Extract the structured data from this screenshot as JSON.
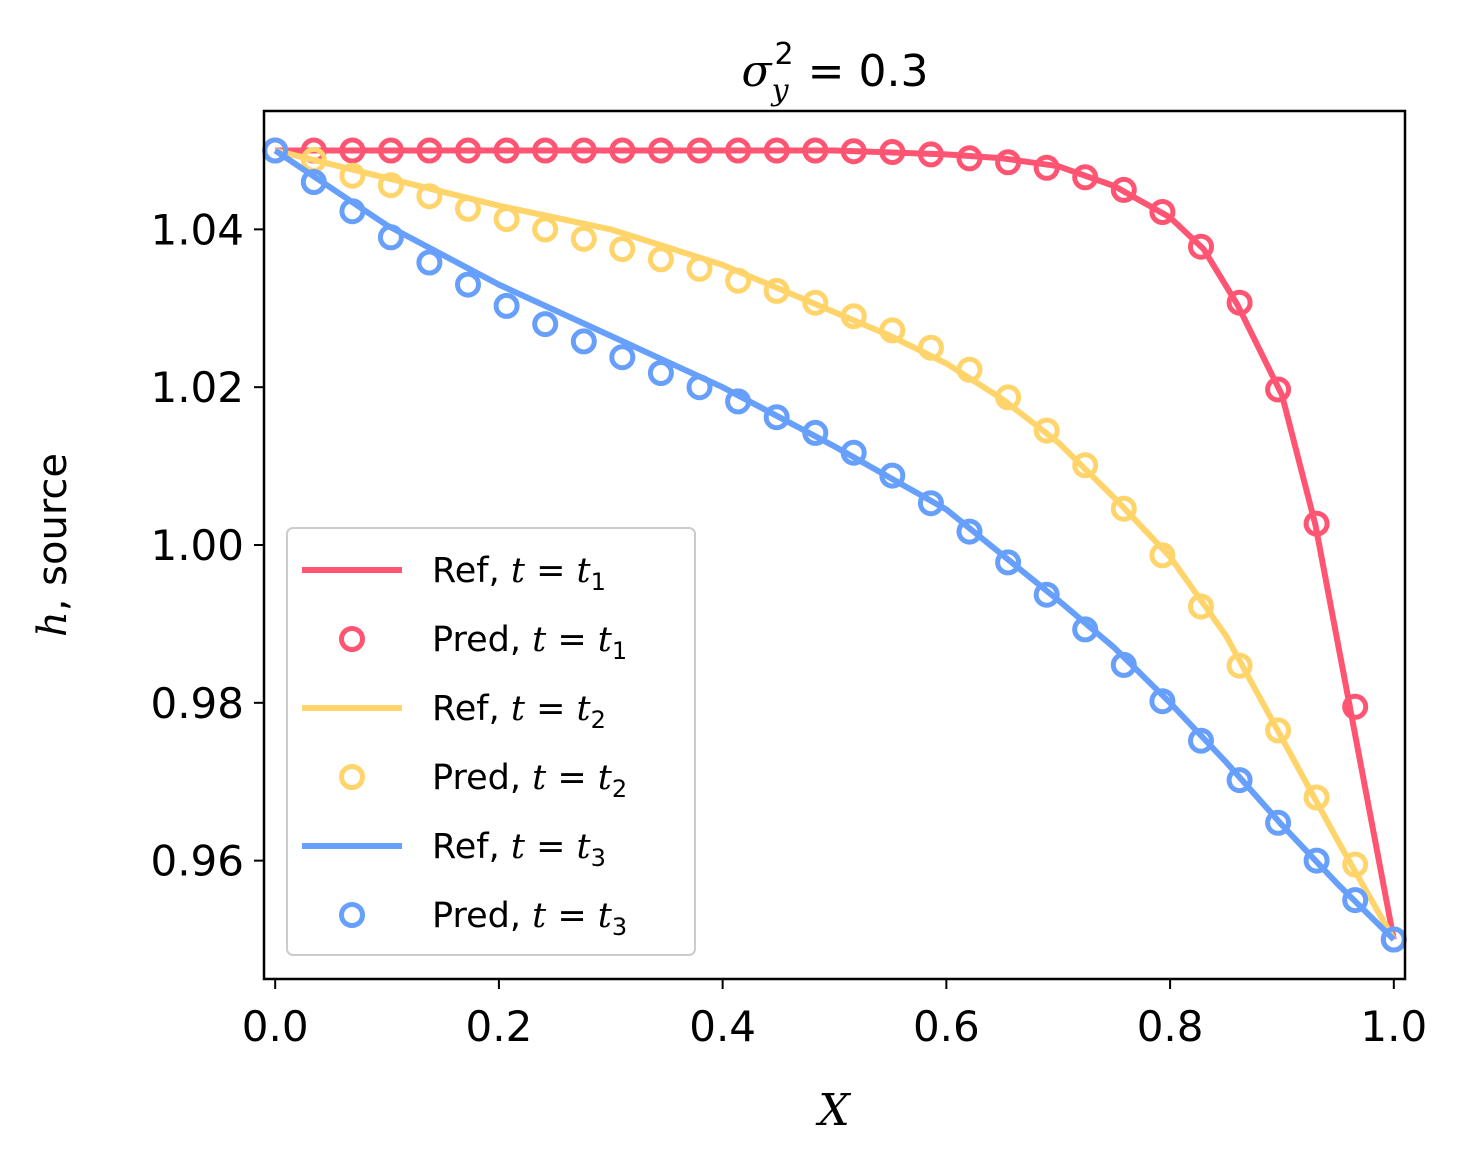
{
  "chart_data": {
    "type": "line",
    "title": "σ_y^2 = 0.3",
    "title_parts": {
      "symbol": "σ",
      "sup": "2",
      "sub": "y",
      "rest": " = 0.3"
    },
    "xlabel": "X",
    "ylabel": ", source",
    "ylabel_italic": "h",
    "xlim": [
      -0.01,
      1.01
    ],
    "ylim": [
      0.945,
      1.055
    ],
    "xticks": [
      0.0,
      0.2,
      0.4,
      0.6,
      0.8,
      1.0
    ],
    "xtick_labels": [
      "0.0",
      "0.2",
      "0.4",
      "0.6",
      "0.8",
      "1.0"
    ],
    "yticks": [
      0.96,
      0.98,
      1.0,
      1.02,
      1.04
    ],
    "ytick_labels": [
      "0.96",
      "0.98",
      "1.00",
      "1.02",
      "1.04"
    ],
    "grid": false,
    "legend_position": "lower-left",
    "colors": {
      "t1": "#ff5573",
      "t2": "#ffd46b",
      "t3": "#679ffc"
    },
    "series": [
      {
        "name": "Ref, t = t1",
        "label_prefix": "Ref, ",
        "t_sub": "1",
        "kind": "line",
        "color_key": "t1",
        "x": [
          0.0,
          0.1,
          0.2,
          0.3,
          0.4,
          0.5,
          0.6,
          0.65,
          0.7,
          0.75,
          0.8,
          0.83,
          0.86,
          0.9,
          0.93,
          0.96,
          1.0
        ],
        "y": [
          1.05,
          1.05,
          1.05,
          1.05,
          1.05,
          1.05,
          1.0495,
          1.049,
          1.048,
          1.0455,
          1.0415,
          1.0375,
          1.0305,
          1.019,
          1.0025,
          0.98,
          0.95
        ]
      },
      {
        "name": "Pred, t = t1",
        "label_prefix": "Pred, ",
        "t_sub": "1",
        "kind": "marker",
        "color_key": "t1",
        "x": [
          0.0,
          0.0345,
          0.069,
          0.1034,
          0.1379,
          0.1724,
          0.2069,
          0.2414,
          0.2759,
          0.3103,
          0.3448,
          0.3793,
          0.4138,
          0.4483,
          0.4828,
          0.5172,
          0.5517,
          0.5862,
          0.6207,
          0.6552,
          0.6897,
          0.7241,
          0.7586,
          0.7931,
          0.8276,
          0.8621,
          0.8966,
          0.931,
          0.9655,
          1.0
        ],
        "y": [
          1.05,
          1.05,
          1.05,
          1.05,
          1.05,
          1.05,
          1.05,
          1.05,
          1.05,
          1.05,
          1.05,
          1.05,
          1.05,
          1.05,
          1.05,
          1.0499,
          1.0498,
          1.0495,
          1.049,
          1.0485,
          1.0478,
          1.0466,
          1.045,
          1.0422,
          1.0378,
          1.0307,
          1.0197,
          1.0027,
          0.9795,
          0.95
        ]
      },
      {
        "name": "Ref, t = t2",
        "label_prefix": "Ref, ",
        "t_sub": "2",
        "kind": "line",
        "color_key": "t2",
        "x": [
          0.0,
          0.1,
          0.2,
          0.3,
          0.4,
          0.5,
          0.55,
          0.6,
          0.65,
          0.7,
          0.75,
          0.8,
          0.85,
          0.9,
          0.95,
          1.0
        ],
        "y": [
          1.05,
          1.0465,
          1.043,
          1.04,
          1.0355,
          1.0295,
          1.0265,
          1.023,
          1.0185,
          1.013,
          1.006,
          0.9985,
          0.9885,
          0.9755,
          0.9625,
          0.95
        ]
      },
      {
        "name": "Pred, t = t2",
        "label_prefix": "Pred, ",
        "t_sub": "2",
        "kind": "marker",
        "color_key": "t2",
        "x": [
          0.0,
          0.0345,
          0.069,
          0.1034,
          0.1379,
          0.1724,
          0.2069,
          0.2414,
          0.2759,
          0.3103,
          0.3448,
          0.3793,
          0.4138,
          0.4483,
          0.4828,
          0.5172,
          0.5517,
          0.5862,
          0.6207,
          0.6552,
          0.6897,
          0.7241,
          0.7586,
          0.7931,
          0.8276,
          0.8621,
          0.8966,
          0.931,
          0.9655,
          1.0
        ],
        "y": [
          1.05,
          1.0488,
          1.0468,
          1.0456,
          1.0442,
          1.0426,
          1.0413,
          1.04,
          1.0388,
          1.0375,
          1.0362,
          1.035,
          1.0335,
          1.0322,
          1.0307,
          1.029,
          1.0272,
          1.025,
          1.0222,
          1.0187,
          1.0145,
          1.0101,
          1.0046,
          0.9987,
          0.9922,
          0.9847,
          0.9765,
          0.968,
          0.9595,
          0.95
        ]
      },
      {
        "name": "Ref, t = t3",
        "label_prefix": "Ref, ",
        "t_sub": "3",
        "kind": "line",
        "color_key": "t3",
        "x": [
          0.0,
          0.1,
          0.2,
          0.3,
          0.4,
          0.5,
          0.6,
          0.7,
          0.75,
          0.8,
          0.85,
          0.9,
          0.95,
          1.0
        ],
        "y": [
          1.05,
          1.0405,
          1.033,
          1.0265,
          1.02,
          1.0125,
          1.0045,
          0.993,
          0.987,
          0.98,
          0.9725,
          0.9645,
          0.957,
          0.95
        ]
      },
      {
        "name": "Pred, t = t3",
        "label_prefix": "Pred, ",
        "t_sub": "3",
        "kind": "marker",
        "color_key": "t3",
        "x": [
          0.0,
          0.0345,
          0.069,
          0.1034,
          0.1379,
          0.1724,
          0.2069,
          0.2414,
          0.2759,
          0.3103,
          0.3448,
          0.3793,
          0.4138,
          0.4483,
          0.4828,
          0.5172,
          0.5517,
          0.5862,
          0.6207,
          0.6552,
          0.6897,
          0.7241,
          0.7586,
          0.7931,
          0.8276,
          0.8621,
          0.8966,
          0.931,
          0.9655,
          1.0
        ],
        "y": [
          1.05,
          1.046,
          1.0423,
          1.039,
          1.0358,
          1.033,
          1.0303,
          1.028,
          1.0258,
          1.0238,
          1.0218,
          1.02,
          1.0182,
          1.0162,
          1.0142,
          1.0117,
          1.0088,
          1.0053,
          1.0017,
          0.9978,
          0.9937,
          0.9893,
          0.9848,
          0.9802,
          0.9752,
          0.9702,
          0.9648,
          0.96,
          0.955,
          0.95
        ]
      }
    ]
  }
}
